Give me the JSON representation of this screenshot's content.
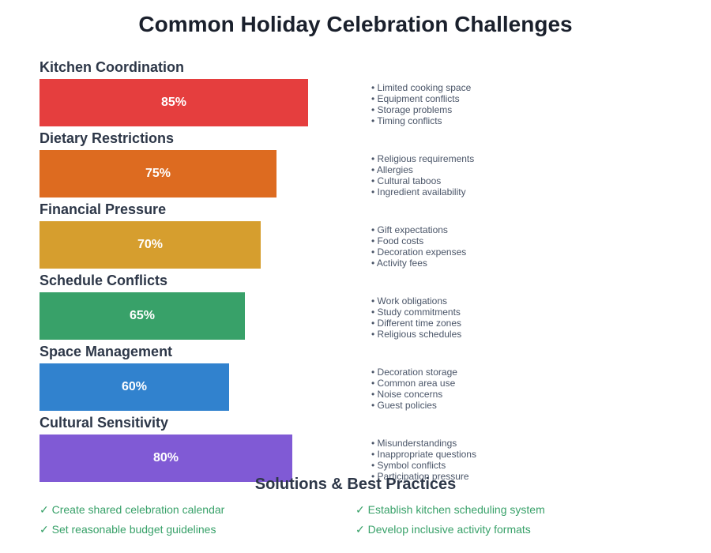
{
  "title": "Common Holiday Celebration Challenges",
  "chart_data": {
    "type": "bar",
    "orientation": "horizontal",
    "title": "Common Holiday Celebration Challenges",
    "categories": [
      "Kitchen Coordination",
      "Dietary Restrictions",
      "Financial Pressure",
      "Schedule Conflicts",
      "Space Management",
      "Cultural Sensitivity"
    ],
    "values": [
      85,
      75,
      70,
      65,
      60,
      80
    ],
    "value_labels": [
      "85%",
      "75%",
      "70%",
      "65%",
      "60%",
      "80%"
    ],
    "unit": "%",
    "xlim": [
      0,
      100
    ],
    "grid": false,
    "colors": [
      "#e53e3e",
      "#dd6b20",
      "#d69e2e",
      "#38a169",
      "#3182ce",
      "#805ad5"
    ],
    "annotations": [
      [
        "Limited cooking space",
        "Equipment conflicts",
        "Storage problems",
        "Timing conflicts"
      ],
      [
        "Religious requirements",
        "Allergies",
        "Cultural taboos",
        "Ingredient availability"
      ],
      [
        "Gift expectations",
        "Food costs",
        "Decoration expenses",
        "Activity fees"
      ],
      [
        "Work obligations",
        "Study commitments",
        "Different time zones",
        "Religious schedules"
      ],
      [
        "Decoration storage",
        "Common area use",
        "Noise concerns",
        "Guest policies"
      ],
      [
        "Misunderstandings",
        "Inappropriate questions",
        "Symbol conflicts",
        "Participation pressure"
      ]
    ]
  },
  "challenges": [
    {
      "label": "Kitchen Coordination",
      "value": "85%",
      "pct": 85,
      "color": "#e53e3e",
      "items": [
        "• Limited cooking space",
        "• Equipment conflicts",
        "• Storage problems",
        "• Timing conflicts"
      ]
    },
    {
      "label": "Dietary Restrictions",
      "value": "75%",
      "pct": 75,
      "color": "#dd6b20",
      "items": [
        "• Religious requirements",
        "• Allergies",
        "• Cultural taboos",
        "• Ingredient availability"
      ]
    },
    {
      "label": "Financial Pressure",
      "value": "70%",
      "pct": 70,
      "color": "#d69e2e",
      "items": [
        "• Gift expectations",
        "• Food costs",
        "• Decoration expenses",
        "• Activity fees"
      ]
    },
    {
      "label": "Schedule Conflicts",
      "value": "65%",
      "pct": 65,
      "color": "#38a169",
      "items": [
        "• Work obligations",
        "• Study commitments",
        "• Different time zones",
        "• Religious schedules"
      ]
    },
    {
      "label": "Space Management",
      "value": "60%",
      "pct": 60,
      "color": "#3182ce",
      "items": [
        "• Decoration storage",
        "• Common area use",
        "• Noise concerns",
        "• Guest policies"
      ]
    },
    {
      "label": "Cultural Sensitivity",
      "value": "80%",
      "pct": 80,
      "color": "#805ad5",
      "items": [
        "• Misunderstandings",
        "• Inappropriate questions",
        "• Symbol conflicts",
        "• Participation pressure"
      ]
    }
  ],
  "solutions": {
    "title": "Solutions & Best Practices",
    "items": [
      "✓ Create shared celebration calendar",
      "✓ Establish kitchen scheduling system",
      "✓ Set reasonable budget guidelines",
      "✓ Develop inclusive activity formats"
    ]
  }
}
